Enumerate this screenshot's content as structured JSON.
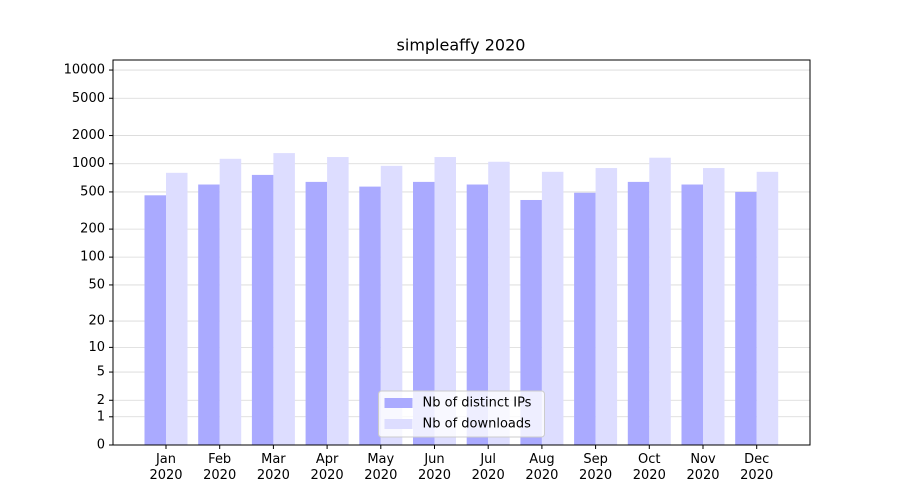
{
  "chart_data": {
    "type": "bar",
    "title": "simpleaffy 2020",
    "scale": "log1p",
    "categories": [
      "Jan\n2020",
      "Feb\n2020",
      "Mar\n2020",
      "Apr\n2020",
      "May\n2020",
      "Jun\n2020",
      "Jul\n2020",
      "Aug\n2020",
      "Sep\n2020",
      "Oct\n2020",
      "Nov\n2020",
      "Dec\n2020"
    ],
    "series": [
      {
        "name": "Nb of distinct IPs",
        "color": "#aaaaff",
        "values": [
          460,
          600,
          760,
          640,
          570,
          640,
          600,
          410,
          490,
          640,
          600,
          500
        ]
      },
      {
        "name": "Nb of downloads",
        "color": "#ddddff",
        "values": [
          800,
          1130,
          1300,
          1180,
          950,
          1180,
          1050,
          820,
          900,
          1160,
          900,
          820
        ]
      }
    ],
    "ylim": [
      0,
      12800
    ],
    "yticks": [
      0,
      1,
      2,
      5,
      10,
      20,
      50,
      100,
      200,
      500,
      1000,
      2000,
      5000,
      10000
    ],
    "grid": true,
    "legend": "lower center"
  }
}
